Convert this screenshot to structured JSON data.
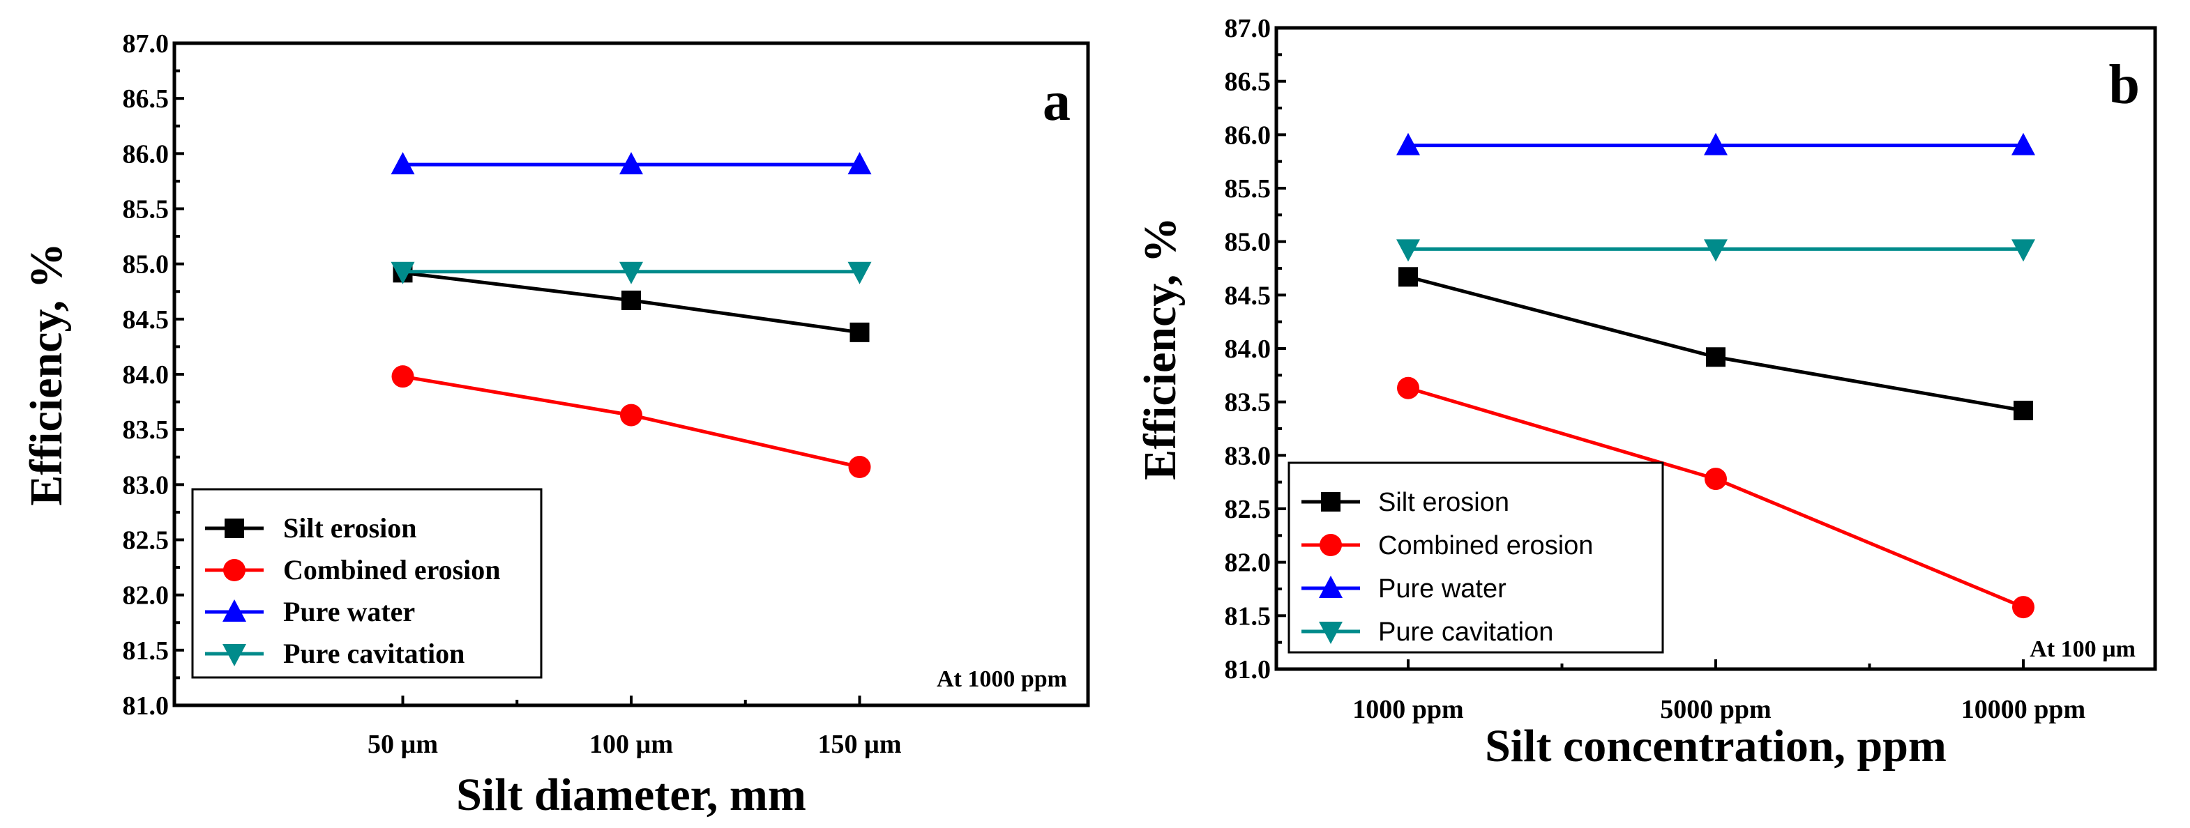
{
  "chart_data": [
    {
      "type": "line",
      "panel_label": "a",
      "title": "",
      "xlabel": "Silt diameter, mm",
      "ylabel": "Efficiency, %",
      "categories": [
        "50 µm",
        "100 µm",
        "150 µm"
      ],
      "ylim": [
        81.0,
        87.0
      ],
      "yticks": [
        "81.0",
        "81.5",
        "82.0",
        "82.5",
        "83.0",
        "83.5",
        "84.0",
        "84.5",
        "85.0",
        "85.5",
        "86.0",
        "86.5",
        "87.0"
      ],
      "annotation": "At 1000 ppm",
      "legend_position": "bottom-left",
      "series": [
        {
          "name": "Silt erosion",
          "color": "#000000",
          "marker": "square",
          "values": [
            84.92,
            84.67,
            84.38
          ]
        },
        {
          "name": "Combined erosion",
          "color": "#ff0000",
          "marker": "circle",
          "values": [
            83.98,
            83.63,
            83.16
          ]
        },
        {
          "name": "Pure water",
          "color": "#0000ff",
          "marker": "triangle-up",
          "values": [
            85.9,
            85.9,
            85.9
          ]
        },
        {
          "name": "Pure cavitation",
          "color": "#008b8b",
          "marker": "triangle-down",
          "values": [
            84.93,
            84.93,
            84.93
          ]
        }
      ]
    },
    {
      "type": "line",
      "panel_label": "b",
      "title": "",
      "xlabel": "Silt concentration, ppm",
      "ylabel": "Efficiency, %",
      "categories": [
        "1000 ppm",
        "5000 ppm",
        "10000 ppm"
      ],
      "ylim": [
        81.0,
        87.0
      ],
      "yticks": [
        "81.0",
        "81.5",
        "82.0",
        "82.5",
        "83.0",
        "83.5",
        "84.0",
        "84.5",
        "85.0",
        "85.5",
        "86.0",
        "86.5",
        "87.0"
      ],
      "annotation": "At 100 µm",
      "legend_position": "bottom-left",
      "series": [
        {
          "name": "Silt erosion",
          "color": "#000000",
          "marker": "square",
          "values": [
            84.67,
            83.92,
            83.42
          ]
        },
        {
          "name": "Combined erosion",
          "color": "#ff0000",
          "marker": "circle",
          "values": [
            83.63,
            82.78,
            81.58
          ]
        },
        {
          "name": "Pure water",
          "color": "#0000ff",
          "marker": "triangle-up",
          "values": [
            85.9,
            85.9,
            85.9
          ]
        },
        {
          "name": "Pure cavitation",
          "color": "#008b8b",
          "marker": "triangle-down",
          "values": [
            84.93,
            84.93,
            84.93
          ]
        }
      ]
    }
  ]
}
